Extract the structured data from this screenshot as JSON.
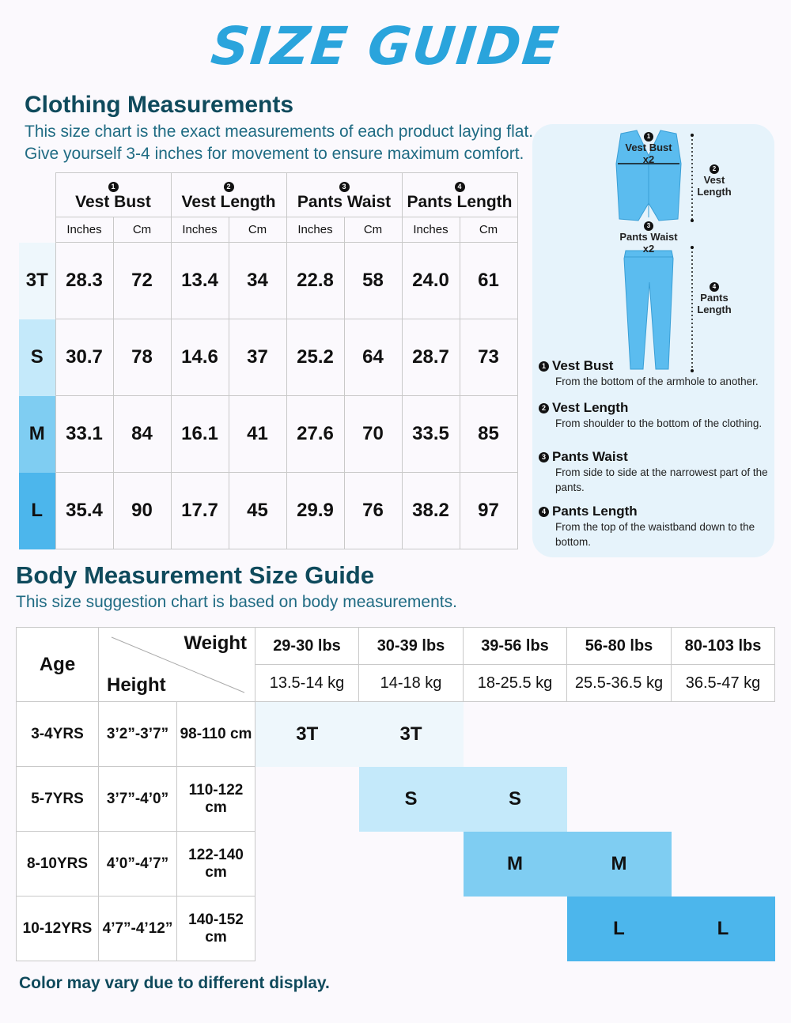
{
  "title": "SIZE GUIDE",
  "clothing": {
    "heading": "Clothing Measurements",
    "subtitle_line1": "This size chart is the exact measurements of each product laying flat.",
    "subtitle_line2": "Give yourself 3-4 inches for movement to ensure maximum comfort.",
    "columns": [
      {
        "num": "1",
        "label": "Vest Bust"
      },
      {
        "num": "2",
        "label": "Vest Length"
      },
      {
        "num": "3",
        "label": "Pants Waist"
      },
      {
        "num": "4",
        "label": "Pants Length"
      }
    ],
    "unit_inches": "Inches",
    "unit_cm": "Cm",
    "rows": [
      {
        "size": "3T",
        "values": [
          "28.3",
          "72",
          "13.4",
          "34",
          "22.8",
          "58",
          "24.0",
          "61"
        ]
      },
      {
        "size": "S",
        "values": [
          "30.7",
          "78",
          "14.6",
          "37",
          "25.2",
          "64",
          "28.7",
          "73"
        ]
      },
      {
        "size": "M",
        "values": [
          "33.1",
          "84",
          "16.1",
          "41",
          "27.6",
          "70",
          "33.5",
          "85"
        ]
      },
      {
        "size": "L",
        "values": [
          "35.4",
          "90",
          "17.7",
          "45",
          "29.9",
          "76",
          "38.2",
          "97"
        ]
      }
    ]
  },
  "diagram": {
    "vest_bust": "Vest Bust",
    "vest_bust_x": "x2",
    "vest_length_1": "Vest",
    "vest_length_2": "Length",
    "pants_waist": "Pants Waist",
    "pants_waist_x": "x2",
    "pants_length_1": "Pants",
    "pants_length_2": "Length"
  },
  "definitions": [
    {
      "num": "1",
      "term": "Vest Bust",
      "desc": "From the bottom of the armhole to another."
    },
    {
      "num": "2",
      "term": "Vest Length",
      "desc": "From shoulder to the bottom of the clothing."
    },
    {
      "num": "3",
      "term": "Pants Waist",
      "desc": "From side to side at the narrowest part of the pants."
    },
    {
      "num": "4",
      "term": "Pants Length",
      "desc": "From the top of the waistband down to the bottom."
    }
  ],
  "body": {
    "heading": "Body Measurement Size Guide",
    "subtitle": "This size suggestion chart is based on body measurements.",
    "age_label": "Age",
    "weight_label": "Weight",
    "height_label": "Height",
    "weights_lbs": [
      "29-30 lbs",
      "30-39 lbs",
      "39-56 lbs",
      "56-80 lbs",
      "80-103 lbs"
    ],
    "weights_kg": [
      "13.5-14 kg",
      "14-18 kg",
      "18-25.5 kg",
      "25.5-36.5 kg",
      "36.5-47 kg"
    ],
    "rows": [
      {
        "age": "3-4YRS",
        "height_ft": "3’2”-3’7”",
        "height_cm": "98-110 cm",
        "cells": [
          "3T",
          "3T",
          "",
          "",
          ""
        ]
      },
      {
        "age": "5-7YRS",
        "height_ft": "3’7”-4’0”",
        "height_cm": "110-122 cm",
        "cells": [
          "",
          "S",
          "S",
          "",
          ""
        ]
      },
      {
        "age": "8-10YRS",
        "height_ft": "4’0”-4’7”",
        "height_cm": "122-140 cm",
        "cells": [
          "",
          "",
          "M",
          "M",
          ""
        ]
      },
      {
        "age": "10-12YRS",
        "height_ft": "4’7”-4’12”",
        "height_cm": "140-152 cm",
        "cells": [
          "",
          "",
          "",
          "L",
          "L"
        ]
      }
    ]
  },
  "footer": "Color may vary due to different display.",
  "colors": {
    "title": "#2aa4dc",
    "heading": "#0f4a5c",
    "size_3T": "#eef7fc",
    "size_S": "#c4e9fa",
    "size_M": "#7fcdf2",
    "size_L": "#4cb6ec",
    "garment": "#5bbcef"
  }
}
